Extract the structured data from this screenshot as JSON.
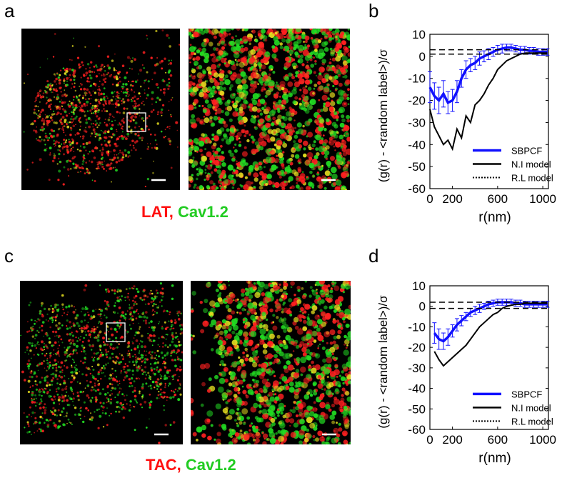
{
  "panel_letters": [
    "a",
    "b",
    "c",
    "d"
  ],
  "captions": [
    {
      "protein": "LAT,",
      "partner": "Cav1.2"
    },
    {
      "protein": "TAC,",
      "partner": "Cav1.2"
    }
  ],
  "colors": {
    "red_channel": "#ff2020",
    "green_channel": "#22dd22",
    "overlap": "#e8e020",
    "sbpcf": "#1010ff",
    "box": "#ffffff"
  },
  "chart_data": [
    {
      "type": "line",
      "panel": "b",
      "xlabel": "r(nm)",
      "ylabel": "(g(r) - <random label>)/σ",
      "xlim": [
        0,
        1050
      ],
      "ylim": [
        -60,
        10
      ],
      "xticks": [
        "0",
        "200",
        "600",
        "1000"
      ],
      "xtick_values": [
        0,
        200,
        600,
        1000
      ],
      "yticks": [
        "10",
        "0",
        "-10",
        "-20",
        "-30",
        "-40",
        "-50",
        "-60"
      ],
      "ytick_values": [
        10,
        0,
        -10,
        -20,
        -30,
        -40,
        -50,
        -60
      ],
      "legend": {
        "placement": "bottom-right"
      },
      "series": [
        {
          "name": "SBPCF",
          "style": "thick-solid",
          "color": "#1010ff",
          "x": [
            0,
            40,
            80,
            120,
            160,
            200,
            240,
            280,
            320,
            360,
            400,
            440,
            480,
            520,
            560,
            600,
            640,
            680,
            720,
            760,
            800,
            840,
            880,
            920,
            960,
            1000,
            1040
          ],
          "y": [
            -14,
            -18,
            -20,
            -17,
            -21,
            -20,
            -16,
            -10,
            -6,
            -4,
            -3,
            -1,
            0,
            1,
            2,
            3,
            3.5,
            4,
            4,
            3.5,
            3,
            3,
            2.5,
            2.5,
            2,
            2,
            2
          ],
          "err": [
            7,
            6,
            6,
            6,
            5,
            5,
            5,
            4,
            4,
            3,
            3,
            3,
            2.5,
            2.5,
            2,
            2,
            2,
            1.5,
            1.5,
            1.5,
            1.5,
            1.5,
            1.5,
            1.5,
            1.5,
            1.5,
            1.5
          ]
        },
        {
          "name": "N.I model",
          "style": "solid",
          "color": "#000000",
          "x": [
            0,
            40,
            80,
            120,
            160,
            200,
            240,
            280,
            320,
            360,
            400,
            440,
            480,
            520,
            560,
            600,
            640,
            680,
            720,
            760,
            800,
            850,
            900,
            1000,
            1040
          ],
          "y": [
            -24,
            -32,
            -36,
            -40,
            -38,
            -42,
            -33,
            -37,
            -27,
            -30,
            -22,
            -20,
            -17,
            -13,
            -10,
            -6,
            -4,
            -2,
            -1,
            0,
            1,
            1.5,
            1.5,
            1.5,
            1.5
          ]
        },
        {
          "name": "R.L model",
          "style": "dotted-bounds",
          "color": "#000000",
          "x": [
            0,
            1040
          ],
          "upper": [
            3,
            3
          ],
          "lower": [
            1,
            1
          ]
        }
      ]
    },
    {
      "type": "line",
      "panel": "d",
      "xlabel": "r(nm)",
      "ylabel": "(g(r) - <random label>)/σ",
      "xlim": [
        0,
        1050
      ],
      "ylim": [
        -60,
        10
      ],
      "xticks": [
        "0",
        "200",
        "600",
        "1000"
      ],
      "xtick_values": [
        0,
        200,
        600,
        1000
      ],
      "yticks": [
        "10",
        "0",
        "-10",
        "-20",
        "-30",
        "-40",
        "-50",
        "-60"
      ],
      "ytick_values": [
        10,
        0,
        -10,
        -20,
        -30,
        -40,
        -50,
        -60
      ],
      "legend": {
        "placement": "bottom-right"
      },
      "series": [
        {
          "name": "SBPCF",
          "style": "thick-solid",
          "color": "#1010ff",
          "x": [
            40,
            80,
            120,
            160,
            200,
            240,
            280,
            320,
            360,
            400,
            440,
            480,
            520,
            560,
            600,
            640,
            680,
            720,
            760,
            800,
            840,
            880,
            920,
            960,
            1000,
            1040
          ],
          "y": [
            -13,
            -16,
            -17,
            -15,
            -12,
            -9,
            -7,
            -5,
            -3,
            -2,
            -1,
            0,
            1,
            1.5,
            2,
            2,
            2,
            2,
            1.5,
            1.5,
            1,
            1,
            1,
            1,
            1,
            1
          ],
          "err": [
            5,
            5,
            4,
            4,
            3,
            3,
            2.5,
            2,
            2,
            2,
            2,
            1.5,
            1.5,
            1.5,
            1.5,
            1.5,
            1.5,
            1.5,
            1.5,
            1.5,
            1.5,
            1.5,
            1.5,
            1.5,
            1.5,
            1.5
          ]
        },
        {
          "name": "N.I model",
          "style": "solid",
          "color": "#000000",
          "x": [
            40,
            80,
            120,
            160,
            200,
            240,
            280,
            320,
            360,
            400,
            440,
            480,
            520,
            560,
            600,
            640,
            680,
            720,
            760,
            800,
            850,
            900,
            1000,
            1040
          ],
          "y": [
            -22,
            -26,
            -29,
            -27,
            -25,
            -23,
            -21,
            -19,
            -16,
            -13,
            -10,
            -8,
            -6,
            -4,
            -3,
            -1,
            0,
            0.5,
            1,
            1,
            1.5,
            1.5,
            1.5,
            1.5
          ]
        },
        {
          "name": "R.L model",
          "style": "dotted-bounds",
          "color": "#000000",
          "x": [
            0,
            1040
          ],
          "upper": [
            2,
            2
          ],
          "lower": [
            -1,
            -1
          ]
        }
      ]
    }
  ]
}
